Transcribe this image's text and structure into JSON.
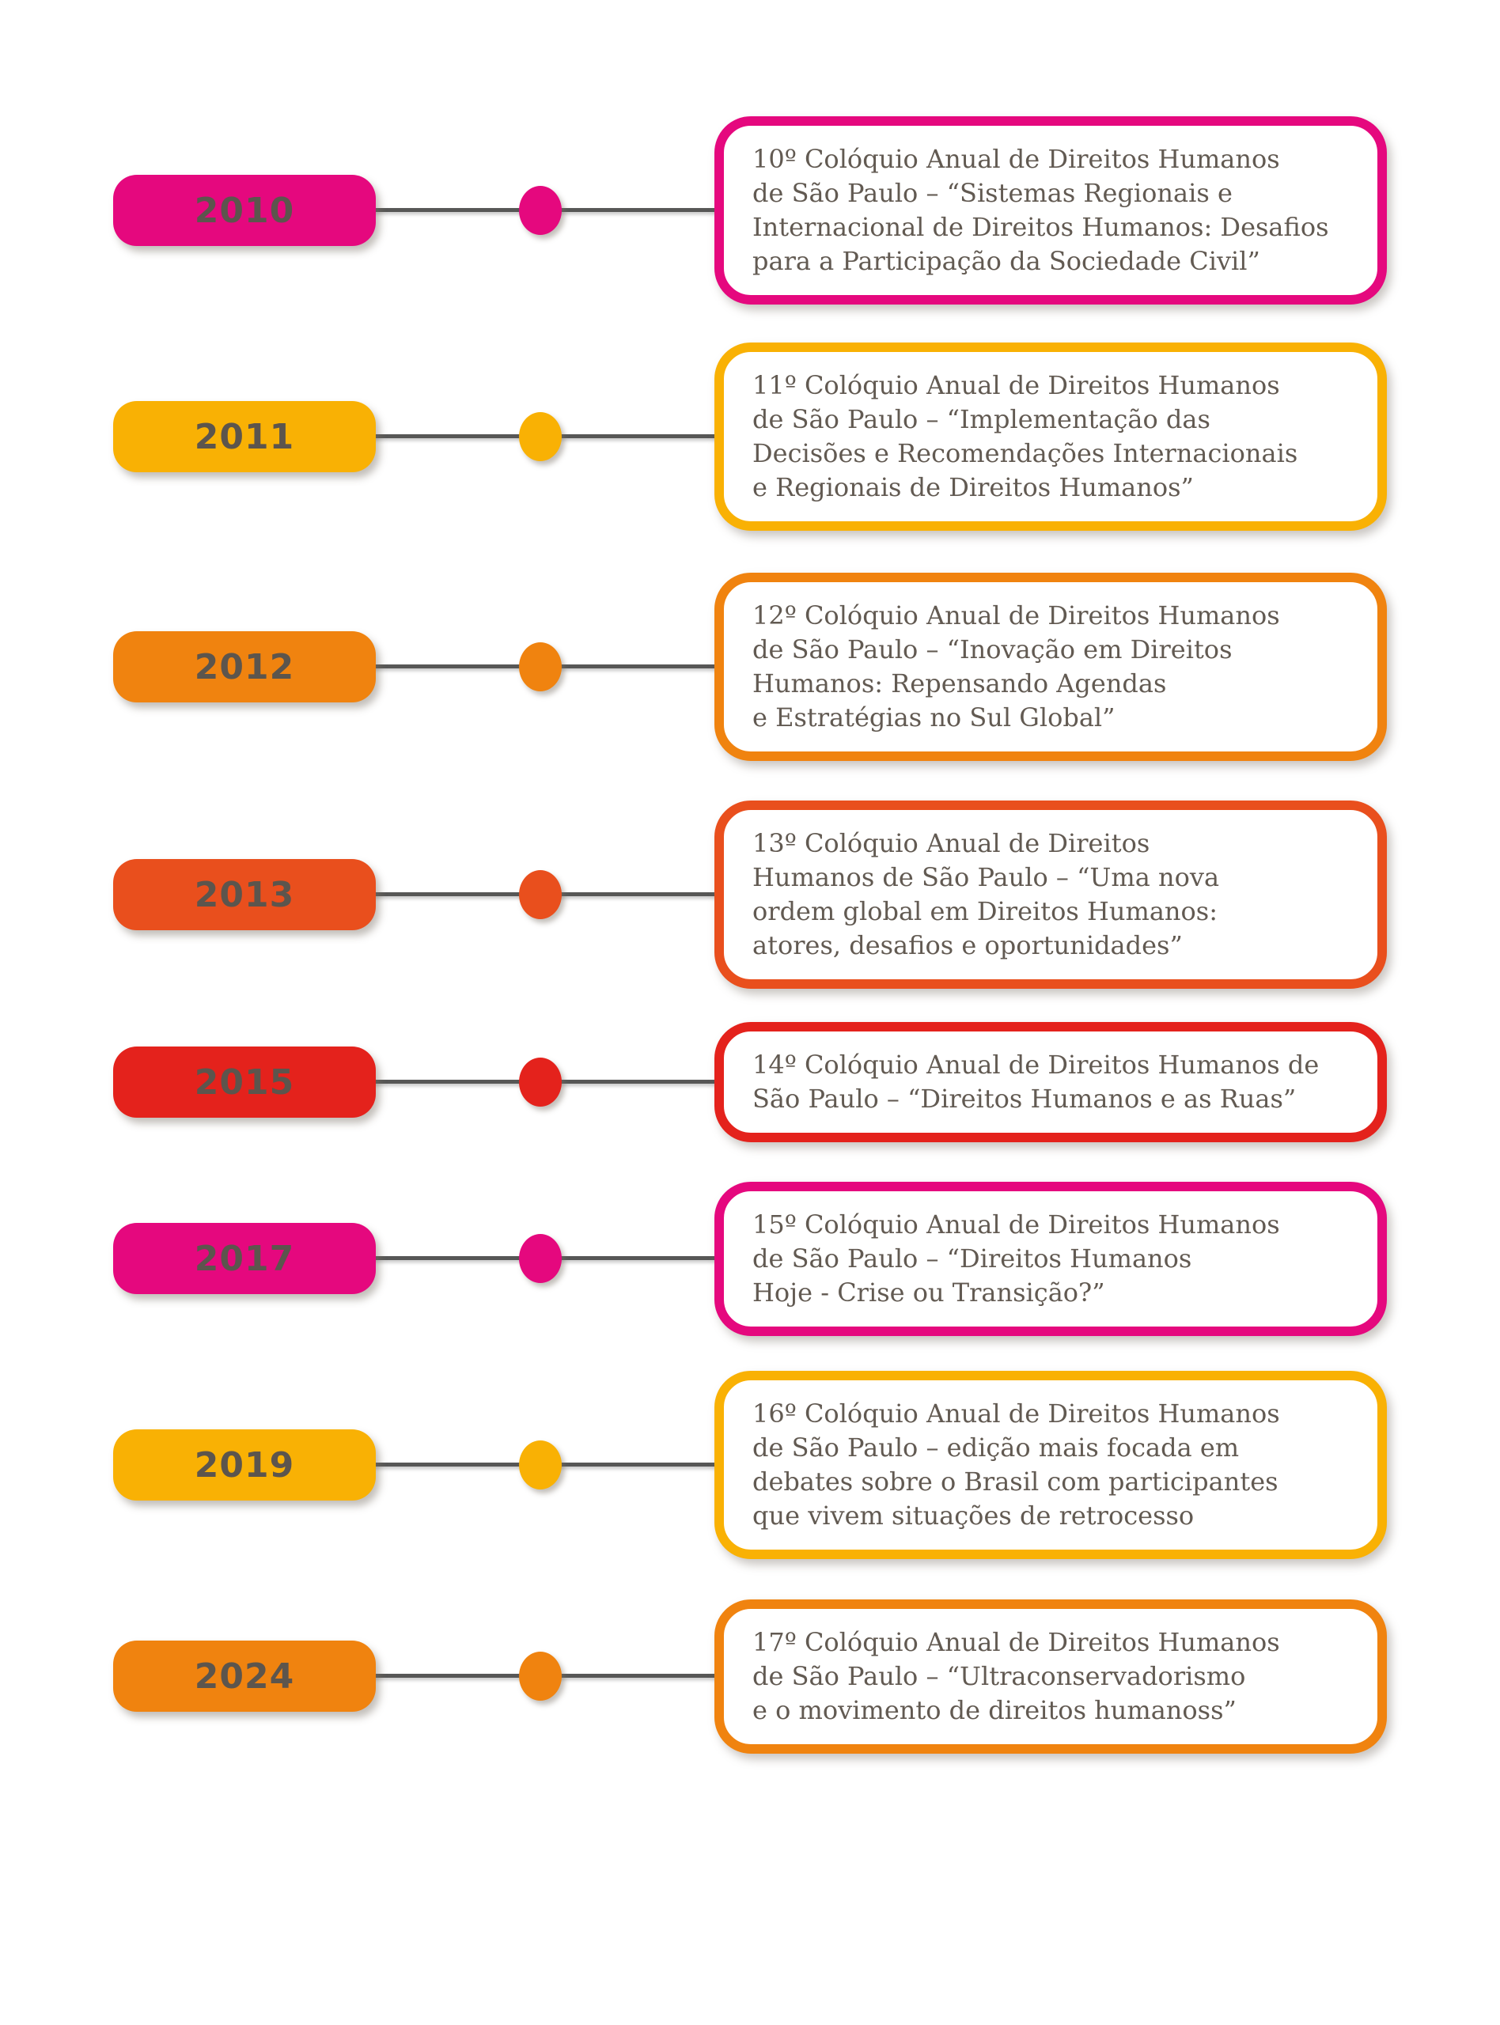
{
  "palette": {
    "magenta": "#E5087E",
    "yellow": "#F9B104",
    "orange": "#F0830F",
    "red_orange": "#E94F1D",
    "red": "#E4221C",
    "connector_gray": "#575756",
    "year_text_color": "#5C554D",
    "body_text_color": "#625A52",
    "background": "#FFFFFF"
  },
  "timeline": {
    "entries": [
      {
        "year": "2010",
        "color": "magenta",
        "description_lines": [
          "10º Colóquio Anual de Direitos Humanos",
          "de São Paulo – “Sistemas Regionais e",
          "Internacional de Direitos Humanos: Desafios",
          "para a Participação da Sociedade Civil”"
        ]
      },
      {
        "year": "2011",
        "color": "yellow",
        "description_lines": [
          "11º Colóquio Anual de Direitos Humanos",
          "de São Paulo – “Implementação das",
          "Decisões e Recomendações Internacionais",
          "e Regionais de Direitos Humanos”"
        ]
      },
      {
        "year": "2012",
        "color": "orange",
        "description_lines": [
          "12º Colóquio Anual de Direitos Humanos",
          "de São Paulo – “Inovação em Direitos",
          "Humanos: Repensando Agendas",
          "e Estratégias no Sul Global”"
        ]
      },
      {
        "year": "2013",
        "color": "red_orange",
        "description_lines": [
          "13º Colóquio Anual de Direitos",
          "Humanos de São Paulo – “Uma nova",
          "ordem global em Direitos Humanos:",
          "atores, desafios e oportunidades”"
        ]
      },
      {
        "year": "2015",
        "color": "red",
        "description_lines": [
          "14º Colóquio Anual de Direitos Humanos de",
          "São Paulo – “Direitos Humanos e as Ruas”"
        ]
      },
      {
        "year": "2017",
        "color": "magenta",
        "description_lines": [
          "15º Colóquio Anual de Direitos Humanos",
          "de São Paulo – “Direitos Humanos",
          "Hoje - Crise ou Transição?”"
        ]
      },
      {
        "year": "2019",
        "color": "yellow",
        "description_lines": [
          "16º Colóquio Anual de Direitos Humanos",
          "de São Paulo – edição mais focada em",
          "debates sobre o Brasil com participantes",
          "que vivem situações de retrocesso"
        ]
      },
      {
        "year": "2024",
        "color": "orange",
        "description_lines": [
          "17º Colóquio Anual de Direitos Humanos",
          "de São Paulo – “Ultraconservadorismo",
          "e o movimento de direitos humanoss”"
        ]
      }
    ]
  }
}
